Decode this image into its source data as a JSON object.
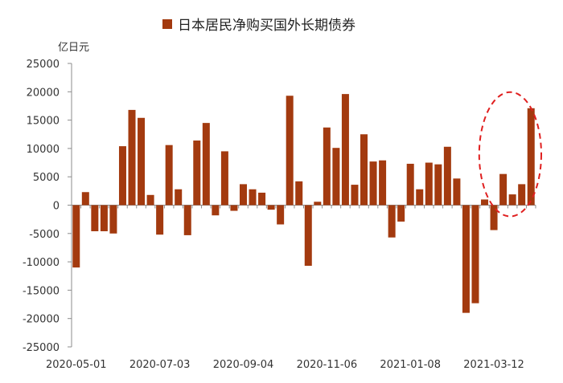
{
  "chart_data": {
    "type": "bar",
    "title": "日本居民净购买国外长期债券",
    "unit_label": "亿日元",
    "legend": [
      {
        "name": "日本居民净购买国外长期债券",
        "color": "#a33a0f"
      }
    ],
    "ylim": [
      -25000,
      25000
    ],
    "yticks": [
      25000,
      20000,
      15000,
      10000,
      5000,
      0,
      -5000,
      -10000,
      -15000,
      -20000,
      -25000
    ],
    "xtick_labels": [
      "2020-05-01",
      "2020-07-03",
      "2020-09-04",
      "2020-11-06",
      "2021-01-08",
      "2021-03-12"
    ],
    "grid": false,
    "bar_color": "#a33a0f",
    "highlight": {
      "description": "dashed red ellipse around latest bars",
      "color": "#e02020",
      "bars_from_index": 44,
      "bars_to_index": 49
    },
    "series": [
      {
        "values": [
          -11000,
          2300,
          -4600,
          -4600,
          -5000,
          10400,
          16800,
          15400,
          1800,
          -5200,
          10600,
          2800,
          -5300,
          11400,
          14500,
          -1800,
          9500,
          -1000,
          3700,
          2800,
          2200,
          -800,
          -3400,
          19300,
          4200,
          -10700,
          600,
          13700,
          10100,
          19600,
          3600,
          12500,
          7700,
          7900,
          -5700,
          -2900,
          7300,
          2800,
          7500,
          7200,
          10300,
          4700,
          -19000,
          -17300,
          1000,
          -4400,
          5500,
          1900,
          3700,
          17100
        ]
      }
    ]
  }
}
